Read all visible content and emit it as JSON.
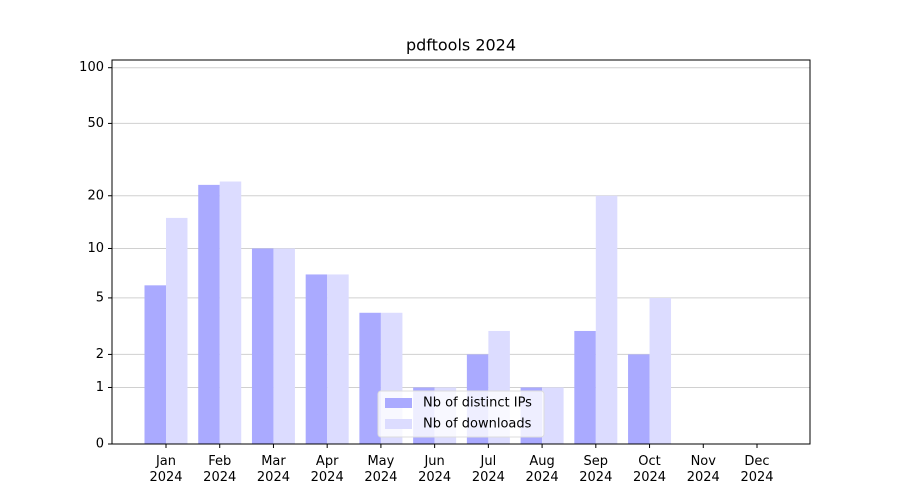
{
  "chart_data": {
    "type": "bar",
    "title": "pdftools 2024",
    "categories": [
      "Jan\n2024",
      "Feb\n2024",
      "Mar\n2024",
      "Apr\n2024",
      "May\n2024",
      "Jun\n2024",
      "Jul\n2024",
      "Aug\n2024",
      "Sep\n2024",
      "Oct\n2024",
      "Nov\n2024",
      "Dec\n2024"
    ],
    "series": [
      {
        "name": "Nb of distinct IPs",
        "color": "#aaaaff",
        "values": [
          6,
          23,
          10,
          7,
          4,
          1,
          2,
          1,
          3,
          2,
          0,
          0
        ]
      },
      {
        "name": "Nb of downloads",
        "color": "#dcdcff",
        "values": [
          15,
          24,
          10,
          7,
          4,
          1,
          3,
          1,
          20,
          5,
          0,
          0
        ]
      }
    ],
    "yscale": "log1p",
    "ylim": [
      0,
      110
    ],
    "yticks": [
      0,
      1,
      2,
      5,
      10,
      20,
      50,
      100
    ],
    "grid": true,
    "legend": "lower center"
  }
}
